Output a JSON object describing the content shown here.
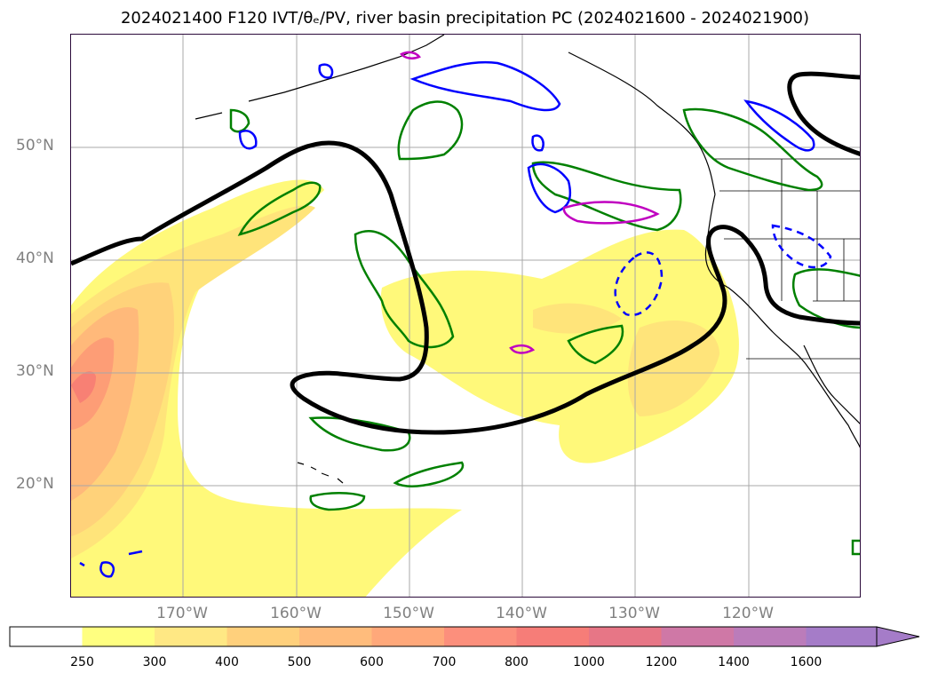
{
  "title": "2024021400 F120 IVT/θₑ/PV, river basin precipitation PC (2024021600 - 2024021900)",
  "map": {
    "lat_labels": [
      "50°N",
      "40°N",
      "30°N",
      "20°N"
    ],
    "lon_labels": [
      "170°W",
      "160°W",
      "150°W",
      "140°W",
      "130°W",
      "120°W"
    ],
    "layers": [
      "IVT shading",
      "θe contour",
      "PV contours",
      "coastlines",
      "state borders"
    ],
    "colors": {
      "ivt_250": "#fff97a",
      "ivt_300": "#ffe47a",
      "ivt_400": "#ffd27a",
      "ivt_500": "#ffb97a",
      "ivt_600": "#fd9d76",
      "ivt_700": "#f88074",
      "theta_e": "#000000",
      "pv_positive": "#008000",
      "pv_negative": "#0000ff",
      "magenta": "#c000c0"
    }
  },
  "colorbar": {
    "ticks": [
      "250",
      "300",
      "400",
      "500",
      "600",
      "700",
      "800",
      "1000",
      "1200",
      "1400",
      "1600"
    ],
    "colors": [
      "#ffff80",
      "#ffe884",
      "#ffd07c",
      "#ffbc7c",
      "#ffa87a",
      "#fc8f7c",
      "#f67d78",
      "#e77686",
      "#cf78a6",
      "#bb7cba",
      "#a57cc8"
    ],
    "extend": "max"
  }
}
